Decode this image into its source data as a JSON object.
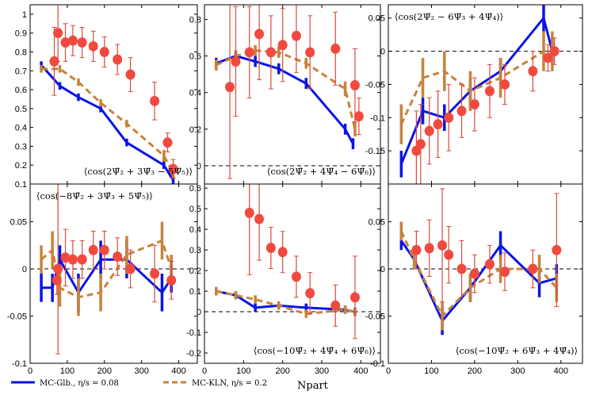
{
  "colors": {
    "glauber": "#0a14e6",
    "kln": "#c8823c",
    "data_marker": "#f04a40",
    "data_error": "#d84a3c",
    "zero_line": "#000000"
  },
  "legend": {
    "glauber_label": "MC-Glb., η/s = 0.08",
    "kln_label": "MC-KLN, η/s = 0.2"
  },
  "xlabel": "N_part",
  "xlabel_display": "Npart",
  "chart_data": [
    {
      "type": "line+scatter",
      "panel": "top-left",
      "title": "⟨cos(2Ψ̄₂ + 3Ψ̄₃ − 5Ψ̄₅)⟩",
      "annotation_location": "bottom",
      "xlim": [
        0,
        450
      ],
      "ylim": [
        0.1,
        1.05
      ],
      "xticks": [],
      "yticks": [
        0.1,
        0.2,
        0.3,
        0.4,
        0.5,
        0.6,
        0.7,
        0.8,
        0.9,
        1
      ],
      "ytick_labels": [
        "0.1",
        "0.2",
        "0.3",
        "0.4",
        "0.5",
        "0.6",
        "0.7",
        "0.8",
        "0.9",
        "1"
      ],
      "series": [
        {
          "name": "MC-Glb., η/s = 0.08",
          "style": "solid",
          "x": [
            30,
            80,
            130,
            190,
            260,
            360,
            385
          ],
          "y": [
            0.73,
            0.62,
            0.56,
            0.5,
            0.32,
            0.2,
            0.12
          ],
          "err": [
            0.02,
            0.02,
            0.02,
            0.02,
            0.02,
            0.02,
            0.02
          ]
        },
        {
          "name": "MC-KLN, η/s = 0.2",
          "style": "dashed",
          "x": [
            30,
            80,
            130,
            190,
            260,
            360,
            385
          ],
          "y": [
            0.71,
            0.71,
            0.64,
            0.53,
            0.42,
            0.25,
            0.16
          ],
          "err": [
            0.02,
            0.02,
            0.02,
            0.02,
            0.02,
            0.03,
            0.03
          ]
        }
      ],
      "points": {
        "name": "data",
        "x": [
          65,
          75,
          95,
          115,
          140,
          170,
          200,
          235,
          270,
          335,
          370,
          385
        ],
        "y": [
          0.75,
          0.9,
          0.85,
          0.86,
          0.85,
          0.83,
          0.8,
          0.76,
          0.68,
          0.54,
          0.32,
          0.18
        ],
        "err": [
          0.18,
          0.15,
          0.1,
          0.08,
          0.08,
          0.08,
          0.08,
          0.08,
          0.09,
          0.1,
          0.05,
          0.05
        ]
      }
    },
    {
      "type": "line+scatter",
      "panel": "top-middle",
      "title": "⟨cos(2Ψ̄₂ + 4Ψ̄₄ − 6Ψ̄₆)⟩",
      "annotation_location": "bottom",
      "xlim": [
        0,
        450
      ],
      "ylim": [
        -0.1,
        0.88
      ],
      "xticks": [],
      "yticks": [
        0,
        0.2,
        0.4,
        0.6,
        0.8
      ],
      "ytick_labels": [
        "0",
        "0.2",
        "0.4",
        "0.6",
        "0.8"
      ],
      "series": [
        {
          "name": "MC-Glb., η/s = 0.08",
          "style": "solid",
          "x": [
            30,
            80,
            130,
            190,
            260,
            360,
            380
          ],
          "y": [
            0.56,
            0.6,
            0.57,
            0.53,
            0.45,
            0.2,
            0.12
          ],
          "err": [
            0.03,
            0.03,
            0.03,
            0.03,
            0.03,
            0.03,
            0.03
          ]
        },
        {
          "name": "MC-KLN, η/s = 0.2",
          "style": "dashed",
          "x": [
            30,
            80,
            130,
            190,
            260,
            360,
            385
          ],
          "y": [
            0.55,
            0.6,
            0.63,
            0.62,
            0.56,
            0.42,
            0.2
          ],
          "err": [
            0.03,
            0.03,
            0.03,
            0.03,
            0.03,
            0.04,
            0.04
          ]
        }
      ],
      "points": {
        "name": "data",
        "x": [
          65,
          80,
          115,
          140,
          170,
          200,
          235,
          270,
          335,
          385
        ],
        "y": [
          0.43,
          0.57,
          0.62,
          0.72,
          0.62,
          0.66,
          0.71,
          0.62,
          0.64,
          0.44
        ],
        "err": [
          0.5,
          0.3,
          0.25,
          0.25,
          0.2,
          0.2,
          0.2,
          0.2,
          0.2,
          0.2
        ]
      },
      "extra_points": {
        "x": [
          395
        ],
        "y": [
          0.27
        ],
        "err": [
          0.1
        ]
      }
    },
    {
      "type": "line+scatter",
      "panel": "top-right",
      "title": "⟨cos(2Ψ̄₂ − 6Ψ̄₃ + 4Ψ̄₄)⟩",
      "annotation_location": "top",
      "xlim": [
        0,
        450
      ],
      "ylim": [
        -0.2,
        0.07
      ],
      "xticks": [],
      "yticks": [
        -0.2,
        -0.15,
        -0.1,
        -0.05,
        0,
        0.05
      ],
      "ytick_labels": [
        "",
        "-0.15",
        "-0.1",
        "-0.05",
        "0",
        "0.05"
      ],
      "series": [
        {
          "name": "MC-Glb., η/s = 0.08",
          "style": "solid",
          "x": [
            30,
            80,
            130,
            190,
            260,
            360,
            380
          ],
          "y": [
            -0.17,
            -0.09,
            -0.1,
            -0.06,
            -0.03,
            0.05,
            0.0
          ],
          "err": [
            0.02,
            0.02,
            0.02,
            0.02,
            0.02,
            0.02,
            0.02
          ]
        },
        {
          "name": "MC-KLN, η/s = 0.2",
          "style": "dashed",
          "x": [
            30,
            80,
            130,
            190,
            260,
            360,
            380
          ],
          "y": [
            -0.11,
            -0.04,
            -0.03,
            -0.06,
            -0.04,
            0.0,
            0.0
          ],
          "err": [
            0.03,
            0.03,
            0.03,
            0.03,
            0.03,
            0.03,
            0.03
          ]
        }
      ],
      "points": {
        "name": "data",
        "x": [
          65,
          75,
          95,
          115,
          140,
          170,
          200,
          235,
          270,
          335,
          370,
          385
        ],
        "y": [
          -0.15,
          -0.14,
          -0.12,
          -0.11,
          -0.1,
          -0.09,
          -0.08,
          -0.06,
          -0.05,
          -0.03,
          -0.01,
          0.0
        ],
        "err": [
          0.06,
          0.06,
          0.05,
          0.05,
          0.05,
          0.04,
          0.04,
          0.04,
          0.03,
          0.03,
          0.02,
          0.02
        ]
      }
    },
    {
      "type": "line+scatter",
      "panel": "bottom-left",
      "title": "⟨cos(−8Ψ̄₂ + 3Ψ̄₃ + 5Ψ̄₅)⟩",
      "annotation_location": "top",
      "xlim": [
        0,
        450
      ],
      "ylim": [
        -0.1,
        0.09
      ],
      "xticks": [
        0,
        100,
        200,
        300,
        400
      ],
      "yticks": [
        -0.1,
        -0.05,
        0,
        0.05
      ],
      "ytick_labels": [
        "-0.1",
        "-0.05",
        "0",
        "0.05"
      ],
      "series": [
        {
          "name": "MC-Glb., η/s = 0.08",
          "style": "solid",
          "x": [
            30,
            60,
            80,
            130,
            190,
            260,
            355,
            380
          ],
          "y": [
            -0.02,
            -0.02,
            0.01,
            -0.025,
            0.01,
            0.01,
            -0.025,
            -0.01
          ],
          "err": [
            0.015,
            0.015,
            0.015,
            0.02,
            0.02,
            0.02,
            0.02,
            0.015
          ]
        },
        {
          "name": "MC-KLN, η/s = 0.2",
          "style": "dashed",
          "x": [
            30,
            60,
            80,
            130,
            190,
            260,
            355,
            380
          ],
          "y": [
            0.01,
            0.02,
            -0.02,
            -0.03,
            -0.025,
            0.015,
            0.03,
            0.0
          ],
          "err": [
            0.015,
            0.02,
            0.02,
            0.02,
            0.02,
            0.02,
            0.02,
            0.015
          ]
        }
      ],
      "points": {
        "name": "data",
        "x": [
          72,
          75,
          95,
          115,
          140,
          170,
          200,
          235,
          270,
          335,
          380
        ],
        "y": [
          -0.012,
          0.0,
          0.012,
          0.01,
          0.01,
          0.02,
          0.02,
          0.013,
          0.0,
          -0.005,
          -0.012
        ],
        "err": [
          0.015,
          0.09,
          0.03,
          0.02,
          0.02,
          0.02,
          0.02,
          0.02,
          0.02,
          0.03,
          0.02
        ]
      }
    },
    {
      "type": "line+scatter",
      "panel": "bottom-middle",
      "title": "⟨cos(−10Ψ̄₂ + 4Ψ̄₄ + 6Ψ̄₆)⟩",
      "annotation_location": "bottom",
      "xlim": [
        0,
        450
      ],
      "ylim": [
        -0.25,
        0.62
      ],
      "xticks": [
        0,
        100,
        200,
        300,
        400
      ],
      "yticks": [
        -0.2,
        -0.1,
        0,
        0.1,
        0.2,
        0.3,
        0.4,
        0.5,
        0.6
      ],
      "ytick_labels": [
        "-0.2",
        "-0.1",
        "0",
        "0.1",
        "0.2",
        "0.3",
        "0.4",
        "0.5",
        "0.6"
      ],
      "series": [
        {
          "name": "MC-Glb., η/s = 0.08",
          "style": "solid",
          "x": [
            30,
            80,
            130,
            190,
            260,
            360,
            385
          ],
          "y": [
            0.1,
            0.08,
            0.02,
            0.03,
            0.02,
            0.01,
            0.0
          ],
          "err": [
            0.02,
            0.02,
            0.02,
            0.02,
            0.02,
            0.02,
            0.02
          ]
        },
        {
          "name": "MC-KLN, η/s = 0.2",
          "style": "dashed",
          "x": [
            30,
            80,
            130,
            190,
            260,
            360,
            385
          ],
          "y": [
            0.1,
            0.08,
            0.06,
            0.03,
            -0.01,
            0.01,
            0.0
          ],
          "err": [
            0.02,
            0.02,
            0.02,
            0.02,
            0.02,
            0.02,
            0.02
          ]
        }
      ],
      "points": {
        "name": "data",
        "x": [
          115,
          140,
          170,
          200,
          235,
          270,
          335,
          385
        ],
        "y": [
          0.48,
          0.45,
          0.31,
          0.29,
          0.17,
          0.09,
          0.03,
          0.07
        ],
        "err": [
          0.3,
          0.2,
          0.1,
          0.1,
          0.1,
          0.1,
          0.1,
          0.2
        ]
      }
    },
    {
      "type": "line+scatter",
      "panel": "bottom-right",
      "title": "⟨cos(−10Ψ̄₂ + 6Ψ̄₃ + 4Ψ̄₄)⟩",
      "annotation_location": "bottom",
      "xlim": [
        0,
        450
      ],
      "ylim": [
        -0.1,
        0.09
      ],
      "xticks": [
        0,
        100,
        200,
        300,
        400
      ],
      "yticks": [
        -0.1,
        -0.05,
        0,
        0.05
      ],
      "ytick_labels": [
        "-0.1",
        "-0.05",
        "0",
        "0.05"
      ],
      "series": [
        {
          "name": "MC-Glb., η/s = 0.08",
          "style": "solid",
          "x": [
            30,
            60,
            125,
            190,
            260,
            350,
            390
          ],
          "y": [
            0.03,
            0.01,
            -0.055,
            -0.02,
            0.025,
            -0.015,
            -0.01
          ],
          "err": [
            0.01,
            0.01,
            0.015,
            0.015,
            0.015,
            0.015,
            0.015
          ]
        },
        {
          "name": "MC-KLN, η/s = 0.2",
          "style": "dashed",
          "x": [
            30,
            60,
            125,
            190,
            260,
            350,
            390
          ],
          "y": [
            0.04,
            0.01,
            -0.05,
            -0.02,
            0.0,
            0.0,
            -0.02
          ],
          "err": [
            0.01,
            0.01,
            0.015,
            0.015,
            0.015,
            0.015,
            0.015
          ]
        }
      ],
      "points": {
        "name": "data",
        "x": [
          65,
          95,
          125,
          140,
          170,
          200,
          235,
          270,
          335,
          390
        ],
        "y": [
          0.02,
          0.022,
          0.025,
          0.015,
          0.0,
          -0.005,
          0.005,
          -0.003,
          0.0,
          0.02
        ],
        "err": [
          0.02,
          0.03,
          0.06,
          0.03,
          0.03,
          0.02,
          0.02,
          0.02,
          0.02,
          0.06
        ]
      }
    }
  ]
}
